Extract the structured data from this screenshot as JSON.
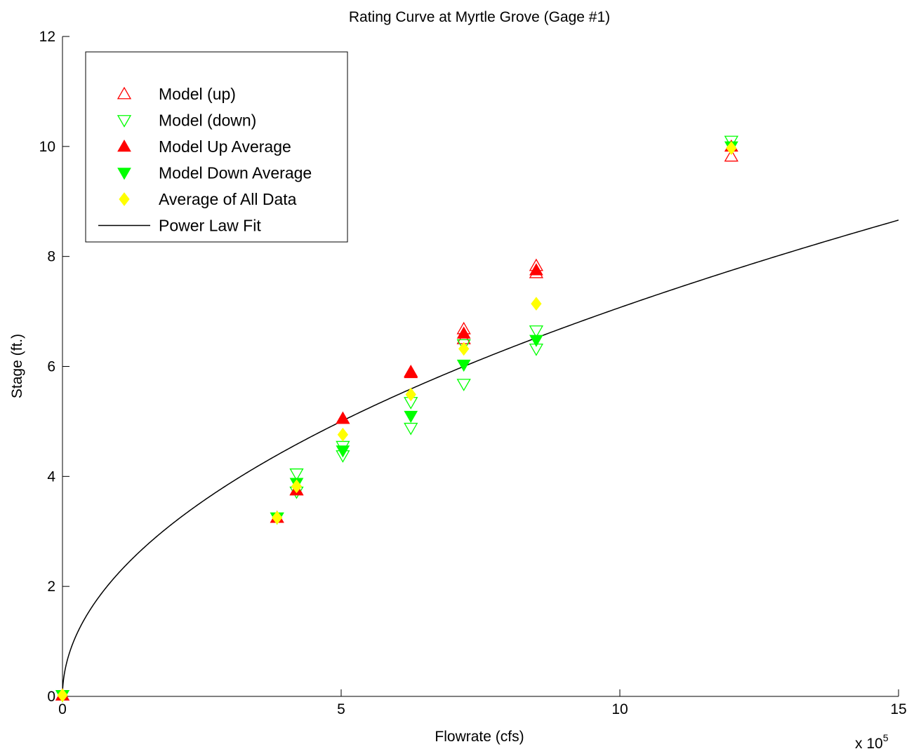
{
  "chart_data": {
    "type": "scatter",
    "title": "Rating Curve at Myrtle Grove (Gage #1)",
    "xlabel": "Flowrate (cfs)",
    "ylabel": "Stage (ft.)",
    "x_multiplier_label": "x 10",
    "x_multiplier_exponent": "5",
    "xlim": [
      0,
      15
    ],
    "ylim": [
      0,
      12
    ],
    "xticks": [
      0,
      5,
      10,
      15
    ],
    "xtick_labels": [
      "0",
      "5",
      "10",
      "15"
    ],
    "yticks": [
      0,
      2,
      4,
      6,
      8,
      10,
      12
    ],
    "ytick_labels": [
      "0",
      "2",
      "4",
      "6",
      "8",
      "10",
      "12"
    ],
    "grid": false,
    "legend_position": "top-left",
    "series": [
      {
        "name": "Model (up)",
        "marker": "triangle-up-open",
        "color": "#ff0000",
        "points": [
          [
            0,
            0.02
          ],
          [
            3.85,
            3.25
          ],
          [
            4.2,
            3.75
          ],
          [
            5.03,
            5.05
          ],
          [
            6.25,
            5.9
          ],
          [
            7.2,
            6.5
          ],
          [
            7.2,
            6.68
          ],
          [
            8.5,
            7.7
          ],
          [
            8.5,
            7.83
          ],
          [
            12.0,
            9.82
          ]
        ]
      },
      {
        "name": "Model (down)",
        "marker": "triangle-down-open",
        "color": "#00ff00",
        "points": [
          [
            0,
            0.02
          ],
          [
            3.85,
            3.25
          ],
          [
            4.2,
            3.72
          ],
          [
            4.2,
            4.05
          ],
          [
            5.03,
            4.38
          ],
          [
            5.03,
            4.55
          ],
          [
            6.25,
            4.88
          ],
          [
            6.25,
            5.35
          ],
          [
            7.2,
            5.68
          ],
          [
            7.2,
            6.4
          ],
          [
            8.5,
            6.32
          ],
          [
            8.5,
            6.65
          ],
          [
            12.0,
            10.1
          ]
        ]
      },
      {
        "name": "Model Up Average",
        "marker": "triangle-up-filled",
        "color": "#ff0000",
        "points": [
          [
            0,
            0.02
          ],
          [
            3.85,
            3.25
          ],
          [
            4.2,
            3.75
          ],
          [
            5.03,
            5.05
          ],
          [
            6.25,
            5.88
          ],
          [
            7.2,
            6.6
          ],
          [
            8.5,
            7.75
          ],
          [
            12.0,
            10.0
          ]
        ]
      },
      {
        "name": "Model Down Average",
        "marker": "triangle-down-filled",
        "color": "#00ff00",
        "points": [
          [
            0,
            0.02
          ],
          [
            3.85,
            3.25
          ],
          [
            4.2,
            3.88
          ],
          [
            5.03,
            4.47
          ],
          [
            6.25,
            5.1
          ],
          [
            7.2,
            6.03
          ],
          [
            8.5,
            6.48
          ],
          [
            12.0,
            10.0
          ]
        ]
      },
      {
        "name": "Average of All Data",
        "marker": "diamond-filled",
        "color": "#ffff00",
        "points": [
          [
            0,
            0.02
          ],
          [
            3.85,
            3.25
          ],
          [
            4.2,
            3.82
          ],
          [
            5.03,
            4.76
          ],
          [
            6.25,
            5.49
          ],
          [
            7.2,
            6.32
          ],
          [
            8.5,
            7.14
          ],
          [
            12.0,
            9.97
          ]
        ]
      },
      {
        "name": "Power Law Fit",
        "marker": "line",
        "color": "#000000",
        "curve": {
          "form": "power",
          "a": 5.0,
          "b": 0.5,
          "x_ref": 5.0
        }
      }
    ]
  }
}
